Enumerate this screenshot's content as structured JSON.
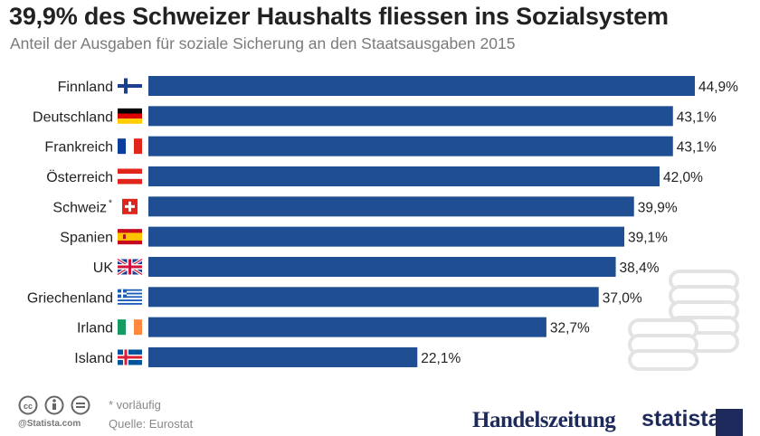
{
  "title": "39,9% des Schweizer Haushalts fliessen ins Sozialsystem",
  "subtitle": "Anteil der Ausgaben für soziale Sicherung an den Staatsausgaben 2015",
  "footnote": "* vorläufig",
  "source": "Quelle: Eurostat",
  "credit": "@Statista.com",
  "logos": {
    "handelszeitung": "Handelszeitung",
    "statista": "statista"
  },
  "colors": {
    "bar": "#1f4e93",
    "text": "#222222",
    "subtitle": "#7a7a7a",
    "coins": "#e3e3e3"
  },
  "chart_data": {
    "type": "bar",
    "orientation": "horizontal",
    "title": "39,9% des Schweizer Haushalts fliessen ins Sozialsystem",
    "subtitle": "Anteil der Ausgaben für soziale Sicherung an den Staatsausgaben 2015",
    "categories": [
      "Finnland",
      "Deutschland",
      "Frankreich",
      "Österreich",
      "Schweiz",
      "Spanien",
      "UK",
      "Griechenland",
      "Irland",
      "Island"
    ],
    "category_marks": [
      "",
      "",
      "",
      "",
      "*",
      "",
      "",
      "",
      "",
      ""
    ],
    "flags": [
      "finland",
      "germany",
      "france",
      "austria",
      "switzerland",
      "spain",
      "uk",
      "greece",
      "ireland",
      "iceland"
    ],
    "values": [
      44.9,
      43.1,
      43.1,
      42.0,
      39.9,
      39.1,
      38.4,
      37.0,
      32.7,
      22.1
    ],
    "value_labels": [
      "44,9%",
      "43,1%",
      "43,1%",
      "42,0%",
      "39,9%",
      "39,1%",
      "38,4%",
      "37,0%",
      "32,7%",
      "22,1%"
    ],
    "xlim": [
      0,
      44.9
    ],
    "grid": false,
    "legend": "none"
  }
}
